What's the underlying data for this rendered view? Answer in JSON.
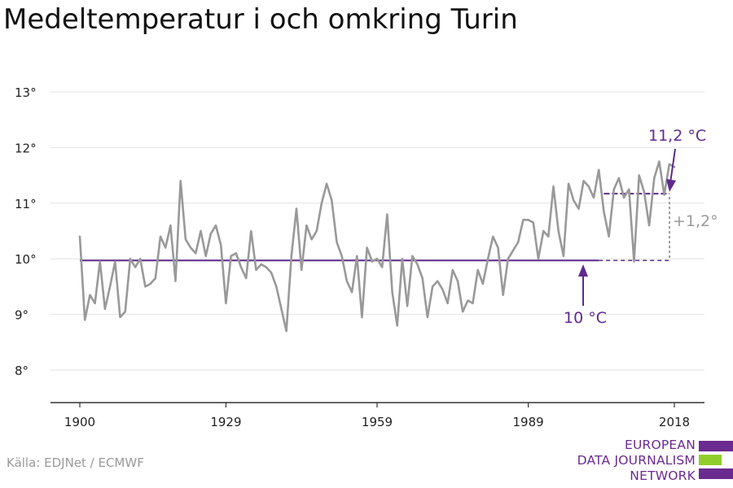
{
  "title": "Medeltemperatur i och omkring Turin",
  "source": "Källa: EDJNet / ECMWF",
  "logo": {
    "line1": "EUROPEAN",
    "line2": "DATA JOURNALISM",
    "line3": "NETWORK",
    "colors": {
      "purple": "#6b2a8f",
      "green": "#8fce2a"
    }
  },
  "colors": {
    "series": "#999999",
    "accent": "#5e2a8e",
    "grid": "#e3e3e3",
    "axis": "#333333"
  },
  "chart_data": {
    "type": "line",
    "title": "Medeltemperatur i och omkring Turin",
    "xlabel": "",
    "ylabel": "",
    "xlim": [
      1900,
      2018
    ],
    "ylim": [
      7.4,
      13.3
    ],
    "grid": true,
    "x_ticks": [
      1900,
      1929,
      1959,
      1989,
      2018
    ],
    "x_tick_labels": [
      "1900",
      "1929",
      "1959",
      "1989",
      "2018"
    ],
    "y_ticks": [
      8,
      9,
      10,
      11,
      12,
      13
    ],
    "y_tick_labels": [
      "8°",
      "9°",
      "10°",
      "11°",
      "12°",
      "13°"
    ],
    "x": [
      1900,
      1901,
      1902,
      1903,
      1904,
      1905,
      1906,
      1907,
      1908,
      1909,
      1910,
      1911,
      1912,
      1913,
      1914,
      1915,
      1916,
      1917,
      1918,
      1919,
      1920,
      1921,
      1922,
      1923,
      1924,
      1925,
      1926,
      1927,
      1928,
      1929,
      1930,
      1931,
      1932,
      1933,
      1934,
      1935,
      1936,
      1937,
      1938,
      1939,
      1940,
      1941,
      1942,
      1943,
      1944,
      1945,
      1946,
      1947,
      1948,
      1949,
      1950,
      1951,
      1952,
      1953,
      1954,
      1955,
      1956,
      1957,
      1958,
      1959,
      1960,
      1961,
      1962,
      1963,
      1964,
      1965,
      1966,
      1967,
      1968,
      1969,
      1970,
      1971,
      1972,
      1973,
      1974,
      1975,
      1976,
      1977,
      1978,
      1979,
      1980,
      1981,
      1982,
      1983,
      1984,
      1985,
      1986,
      1987,
      1988,
      1989,
      1990,
      1991,
      1992,
      1993,
      1994,
      1995,
      1996,
      1997,
      1998,
      1999,
      2000,
      2001,
      2002,
      2003,
      2004,
      2005,
      2006,
      2007,
      2008,
      2009,
      2010,
      2011,
      2012,
      2013,
      2014,
      2015,
      2016,
      2017,
      2018
    ],
    "series": [
      {
        "values": [
          10.4,
          8.9,
          9.35,
          9.2,
          9.95,
          9.1,
          9.5,
          9.95,
          8.95,
          9.05,
          10.0,
          9.85,
          10.0,
          9.5,
          9.55,
          9.65,
          10.4,
          10.2,
          10.6,
          9.6,
          11.4,
          10.35,
          10.2,
          10.1,
          10.5,
          10.05,
          10.45,
          10.6,
          10.25,
          9.2,
          10.05,
          10.1,
          9.85,
          9.65,
          10.5,
          9.8,
          9.9,
          9.85,
          9.75,
          9.5,
          9.1,
          8.7,
          10.05,
          10.9,
          9.8,
          10.6,
          10.35,
          10.5,
          11.0,
          11.35,
          11.05,
          10.3,
          10.05,
          9.6,
          9.4,
          10.05,
          8.95,
          10.2,
          9.95,
          10.0,
          9.85,
          10.8,
          9.4,
          8.8,
          10.0,
          9.15,
          10.05,
          9.9,
          9.65,
          8.95,
          9.5,
          9.6,
          9.45,
          9.2,
          9.8,
          9.6,
          9.05,
          9.25,
          9.2,
          9.8,
          9.55,
          10.0,
          10.4,
          10.2,
          9.35,
          10.0,
          10.15,
          10.3,
          10.7,
          10.7,
          10.65,
          10.0,
          10.5,
          10.4,
          11.3,
          10.5,
          10.05,
          11.35,
          11.05,
          10.9,
          11.4,
          11.3,
          11.1,
          11.6,
          10.85,
          10.4,
          11.25,
          11.45,
          11.1,
          11.25,
          9.95,
          11.5,
          11.2,
          10.6,
          11.45,
          11.75,
          11.15,
          11.7,
          11.65
        ]
      }
    ],
    "reference_lines": [
      {
        "label": "10 °C",
        "value": 9.97,
        "from": 1900,
        "to": 2018
      },
      {
        "label": "11,2 °C",
        "value": 11.17,
        "from": 2004,
        "to": 2018
      }
    ],
    "annotations": {
      "baseline_label": "10 °C",
      "recent_label": "11,2 °C",
      "difference_label": "+1,2°"
    }
  }
}
